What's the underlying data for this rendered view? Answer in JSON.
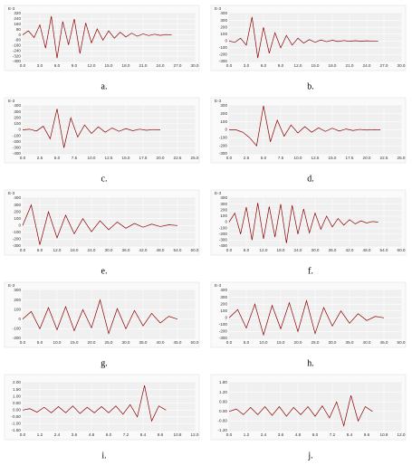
{
  "chart_data": [
    {
      "type": "line",
      "caption": "a.",
      "y_label": "E-3",
      "color": "#8b0000",
      "grid": true,
      "xlim": [
        0,
        30
      ],
      "xticks": [
        {
          "value": 0,
          "label": "0.0"
        },
        {
          "value": 3,
          "label": "3.0"
        },
        {
          "value": 6,
          "label": "6.0"
        },
        {
          "value": 9,
          "label": "9.0"
        },
        {
          "value": 12,
          "label": "12.0"
        },
        {
          "value": 15,
          "label": "15.0"
        },
        {
          "value": 18,
          "label": "18.0"
        },
        {
          "value": 21,
          "label": "21.0"
        },
        {
          "value": 24,
          "label": "24.0"
        },
        {
          "value": 27,
          "label": "27.0"
        },
        {
          "value": 30,
          "label": "30.0"
        }
      ],
      "ylim": [
        -400,
        320
      ],
      "yticks": [
        320,
        240,
        160,
        80,
        0,
        -80,
        -160,
        -240,
        -320,
        -400
      ],
      "x": [
        0,
        1,
        2,
        3,
        4,
        5,
        6,
        7,
        8,
        9,
        10,
        11,
        12,
        13,
        14,
        15,
        16,
        17,
        18,
        19,
        20,
        21,
        22,
        23,
        24,
        25,
        26
      ],
      "values": [
        0,
        60,
        -40,
        150,
        -200,
        280,
        -350,
        200,
        -150,
        240,
        -280,
        180,
        -120,
        90,
        -80,
        60,
        -50,
        40,
        -30,
        25,
        -20,
        15,
        -10,
        10,
        -8,
        5,
        0
      ]
    },
    {
      "type": "line",
      "caption": "b.",
      "y_label": "E-3",
      "color": "#8b0000",
      "grid": true,
      "xlim": [
        0,
        30
      ],
      "xticks": [
        {
          "value": 0,
          "label": "0.0"
        },
        {
          "value": 3,
          "label": "3.0"
        },
        {
          "value": 6,
          "label": "6.0"
        },
        {
          "value": 9,
          "label": "9.0"
        },
        {
          "value": 12,
          "label": "12.0"
        },
        {
          "value": 15,
          "label": "15.0"
        },
        {
          "value": 18,
          "label": "18.0"
        },
        {
          "value": 21,
          "label": "21.0"
        },
        {
          "value": 24,
          "label": "24.0"
        },
        {
          "value": 27,
          "label": "27.0"
        },
        {
          "value": 30,
          "label": "30.0"
        }
      ],
      "ylim": [
        -300,
        400
      ],
      "yticks": [
        400,
        300,
        200,
        100,
        0,
        -100,
        -200,
        -300
      ],
      "x": [
        0,
        1,
        2,
        3,
        4,
        5,
        6,
        7,
        8,
        9,
        10,
        11,
        12,
        13,
        14,
        15,
        16,
        17,
        18,
        19,
        20,
        21,
        22,
        23,
        24,
        25,
        26
      ],
      "values": [
        0,
        -20,
        40,
        -60,
        350,
        -250,
        200,
        -180,
        120,
        -100,
        80,
        -60,
        40,
        -30,
        20,
        -20,
        15,
        -10,
        10,
        -8,
        6,
        -5,
        4,
        -3,
        2,
        -2,
        0
      ]
    },
    {
      "type": "line",
      "caption": "c.",
      "y_label": "E-3",
      "color": "#8b0000",
      "grid": true,
      "xlim": [
        0,
        25
      ],
      "xticks": [
        {
          "value": 0,
          "label": "0.0"
        },
        2.5,
        {
          "value": 5,
          "label": "5.0"
        },
        7.5,
        {
          "value": 10,
          "label": "10.0"
        },
        12.5,
        {
          "value": 15,
          "label": "15.0"
        },
        17.5,
        {
          "value": 20,
          "label": "20.0"
        },
        22.5,
        {
          "value": 25,
          "label": "25.0"
        }
      ],
      "ylim": [
        -400,
        400
      ],
      "yticks": [
        400,
        300,
        200,
        100,
        0,
        -100,
        -200,
        -300,
        -400
      ],
      "x": [
        0,
        1,
        2,
        3,
        4,
        5,
        6,
        7,
        8,
        9,
        10,
        11,
        12,
        13,
        14,
        15,
        16,
        17,
        18,
        19,
        20
      ],
      "values": [
        0,
        10,
        -20,
        60,
        -150,
        350,
        -300,
        200,
        -120,
        80,
        -60,
        50,
        -40,
        30,
        -25,
        20,
        -15,
        10,
        -8,
        5,
        0
      ]
    },
    {
      "type": "line",
      "caption": "d.",
      "y_label": "E-3",
      "color": "#8b0000",
      "grid": true,
      "xlim": [
        0,
        25
      ],
      "xticks": [
        {
          "value": 0,
          "label": "0.0"
        },
        2.5,
        {
          "value": 5,
          "label": "5.0"
        },
        7.5,
        {
          "value": 10,
          "label": "10.0"
        },
        12.5,
        {
          "value": 15,
          "label": "15.0"
        },
        17.5,
        {
          "value": 20,
          "label": "20.0"
        },
        22.5,
        {
          "value": 25,
          "label": "25.0"
        }
      ],
      "ylim": [
        -300,
        300
      ],
      "yticks": [
        300,
        200,
        100,
        0,
        -100,
        -200,
        -300
      ],
      "x": [
        0,
        1,
        2,
        3,
        4,
        5,
        6,
        7,
        8,
        9,
        10,
        11,
        12,
        13,
        14,
        15,
        16,
        17,
        18,
        19,
        20,
        21,
        22
      ],
      "values": [
        0,
        0,
        -30,
        -100,
        -200,
        300,
        -150,
        120,
        -80,
        60,
        -40,
        40,
        -30,
        25,
        -20,
        20,
        -15,
        10,
        -8,
        5,
        -3,
        2,
        0
      ]
    },
    {
      "type": "line",
      "caption": "e.",
      "y_label": "E-3",
      "color": "#8b0000",
      "grid": true,
      "xlim": [
        0,
        60
      ],
      "xticks": [
        {
          "value": 0,
          "label": "0.0"
        },
        {
          "value": 6,
          "label": "6.0"
        },
        {
          "value": 12,
          "label": "12.0"
        },
        {
          "value": 18,
          "label": "18.0"
        },
        {
          "value": 24,
          "label": "24.0"
        },
        {
          "value": 30,
          "label": "30.0"
        },
        {
          "value": 36,
          "label": "36.0"
        },
        {
          "value": 42,
          "label": "42.0"
        },
        {
          "value": 48,
          "label": "48.0"
        },
        {
          "value": 54,
          "label": "54.0"
        },
        {
          "value": 60,
          "label": "60.0"
        }
      ],
      "ylim": [
        -300,
        400
      ],
      "yticks": [
        400,
        300,
        200,
        100,
        0,
        -100,
        -200,
        -300
      ],
      "x": [
        0,
        3,
        6,
        9,
        12,
        15,
        18,
        21,
        24,
        27,
        30,
        33,
        36,
        39,
        42,
        45,
        48,
        51,
        54
      ],
      "values": [
        0,
        300,
        -280,
        200,
        -180,
        150,
        -120,
        100,
        -90,
        70,
        -60,
        50,
        -40,
        30,
        -25,
        20,
        -15,
        10,
        0
      ]
    },
    {
      "type": "line",
      "caption": "f.",
      "y_label": "E-3",
      "color": "#8b0000",
      "grid": true,
      "xlim": [
        0,
        60
      ],
      "xticks": [
        {
          "value": 0,
          "label": "0.0"
        },
        {
          "value": 6,
          "label": "6.0"
        },
        {
          "value": 12,
          "label": "12.0"
        },
        {
          "value": 18,
          "label": "18.0"
        },
        {
          "value": 24,
          "label": "24.0"
        },
        {
          "value": 30,
          "label": "30.0"
        },
        {
          "value": 36,
          "label": "36.0"
        },
        {
          "value": 42,
          "label": "42.0"
        },
        {
          "value": 48,
          "label": "48.0"
        },
        {
          "value": 54,
          "label": "54.0"
        },
        {
          "value": 60,
          "label": "60.0"
        }
      ],
      "ylim": [
        -400,
        400
      ],
      "yticks": [
        400,
        300,
        200,
        100,
        0,
        -100,
        -200,
        -300,
        -400
      ],
      "x": [
        0,
        2,
        4,
        6,
        8,
        10,
        12,
        14,
        16,
        18,
        20,
        22,
        24,
        26,
        28,
        30,
        32,
        34,
        36,
        38,
        40,
        42,
        44,
        46,
        48,
        50,
        52
      ],
      "values": [
        0,
        150,
        -200,
        250,
        -300,
        320,
        -280,
        260,
        -250,
        300,
        -350,
        280,
        -200,
        220,
        -180,
        150,
        -120,
        100,
        -80,
        60,
        -50,
        40,
        -30,
        20,
        -15,
        10,
        0
      ]
    },
    {
      "type": "line",
      "caption": "g.",
      "y_label": "E-3",
      "color": "#8b0000",
      "grid": true,
      "xlim": [
        0,
        50
      ],
      "xticks": [
        {
          "value": 0,
          "label": "0.0"
        },
        {
          "value": 5,
          "label": "5.0"
        },
        {
          "value": 10,
          "label": "10.0"
        },
        {
          "value": 15,
          "label": "15.0"
        },
        {
          "value": 20,
          "label": "20.0"
        },
        {
          "value": 25,
          "label": "25.0"
        },
        {
          "value": 30,
          "label": "30.0"
        },
        {
          "value": 35,
          "label": "35.0"
        },
        {
          "value": 40,
          "label": "40.0"
        },
        {
          "value": 45,
          "label": "45.0"
        },
        {
          "value": 50,
          "label": "50.0"
        }
      ],
      "ylim": [
        -200,
        300
      ],
      "yticks": [
        300,
        200,
        100,
        0,
        -100,
        -200
      ],
      "x": [
        0,
        2.5,
        5,
        7.5,
        10,
        12.5,
        15,
        17.5,
        20,
        22.5,
        25,
        27.5,
        30,
        32.5,
        35,
        37.5,
        40,
        42.5,
        45
      ],
      "values": [
        0,
        80,
        -100,
        120,
        -110,
        130,
        -120,
        100,
        -90,
        200,
        -150,
        110,
        -100,
        90,
        -70,
        60,
        -40,
        30,
        0
      ]
    },
    {
      "type": "line",
      "caption": "h.",
      "y_label": "E-3",
      "color": "#8b0000",
      "grid": true,
      "xlim": [
        0,
        50
      ],
      "xticks": [
        {
          "value": 0,
          "label": "0.0"
        },
        {
          "value": 5,
          "label": "5.0"
        },
        {
          "value": 10,
          "label": "10.0"
        },
        {
          "value": 15,
          "label": "15.0"
        },
        {
          "value": 20,
          "label": "20.0"
        },
        {
          "value": 25,
          "label": "25.0"
        },
        {
          "value": 30,
          "label": "30.0"
        },
        {
          "value": 35,
          "label": "35.0"
        },
        {
          "value": 40,
          "label": "40.0"
        },
        {
          "value": 45,
          "label": "45.0"
        },
        {
          "value": 50,
          "label": "50.0"
        }
      ],
      "ylim": [
        -300,
        400
      ],
      "yticks": [
        400,
        300,
        200,
        100,
        0,
        -100,
        -200,
        -300
      ],
      "x": [
        0,
        2.5,
        5,
        7.5,
        10,
        12.5,
        15,
        17.5,
        20,
        22.5,
        25,
        27.5,
        30,
        32.5,
        35,
        37.5,
        40,
        42.5,
        45
      ],
      "values": [
        0,
        120,
        -150,
        200,
        -250,
        180,
        -160,
        220,
        -200,
        250,
        -230,
        150,
        -120,
        100,
        -80,
        60,
        -40,
        20,
        0
      ]
    },
    {
      "type": "line",
      "caption": "i.",
      "color": "#8b0000",
      "grid": true,
      "xlim": [
        0,
        12
      ],
      "xticks": [
        {
          "value": 0,
          "label": "0.0"
        },
        1.2,
        2.4,
        3.6,
        4.8,
        {
          "value": 6,
          "label": "6.0"
        },
        7.2,
        8.4,
        9.6,
        10.8,
        {
          "value": 12,
          "label": "12.0"
        }
      ],
      "ylim": [
        -1.5,
        2
      ],
      "yticks": [
        {
          "value": 2,
          "label": "2.00"
        },
        {
          "value": 1.5,
          "label": "1.50"
        },
        {
          "value": 1,
          "label": "1.00"
        },
        {
          "value": 0.5,
          "label": "0.50"
        },
        {
          "value": 0,
          "label": "0.00"
        },
        {
          "value": -0.5,
          "label": "-0.50"
        },
        {
          "value": -1,
          "label": "-1.00"
        },
        {
          "value": -1.5,
          "label": "-1.50"
        }
      ],
      "x": [
        0,
        0.5,
        1,
        1.5,
        2,
        2.5,
        3,
        3.5,
        4,
        4.5,
        5,
        5.5,
        6,
        6.5,
        7,
        7.5,
        8,
        8.5,
        9,
        9.5,
        10
      ],
      "values": [
        0,
        0.1,
        -0.15,
        0.2,
        -0.2,
        0.25,
        -0.2,
        0.3,
        -0.25,
        0.2,
        -0.2,
        0.25,
        -0.2,
        0.3,
        -0.3,
        0.4,
        -0.5,
        1.8,
        -0.8,
        0.3,
        0
      ]
    },
    {
      "type": "line",
      "caption": "j.",
      "color": "#8b0000",
      "grid": true,
      "xlim": [
        0,
        12
      ],
      "xticks": [
        {
          "value": 0,
          "label": "0.0"
        },
        1.2,
        2.4,
        3.6,
        4.8,
        {
          "value": 6,
          "label": "6.0"
        },
        7.2,
        8.4,
        9.6,
        10.8,
        {
          "value": 12,
          "label": "12.0"
        }
      ],
      "ylim": [
        -1.2,
        1.8
      ],
      "yticks": [
        {
          "value": 1.8,
          "label": "1.80"
        },
        {
          "value": 1.2,
          "label": "1.20"
        },
        {
          "value": 0.6,
          "label": "0.60"
        },
        {
          "value": 0,
          "label": "0.00"
        },
        {
          "value": -0.6,
          "label": "-0.60"
        },
        {
          "value": -1.2,
          "label": "-1.20"
        }
      ],
      "x": [
        0,
        0.5,
        1,
        1.5,
        2,
        2.5,
        3,
        3.5,
        4,
        4.5,
        5,
        5.5,
        6,
        6.5,
        7,
        7.5,
        8,
        8.5,
        9,
        9.5,
        10
      ],
      "values": [
        0,
        0.15,
        -0.2,
        0.25,
        -0.2,
        0.3,
        -0.25,
        0.3,
        -0.3,
        0.25,
        -0.2,
        0.3,
        -0.3,
        0.35,
        -0.4,
        0.6,
        -0.9,
        1,
        -0.6,
        0.3,
        0
      ]
    }
  ]
}
